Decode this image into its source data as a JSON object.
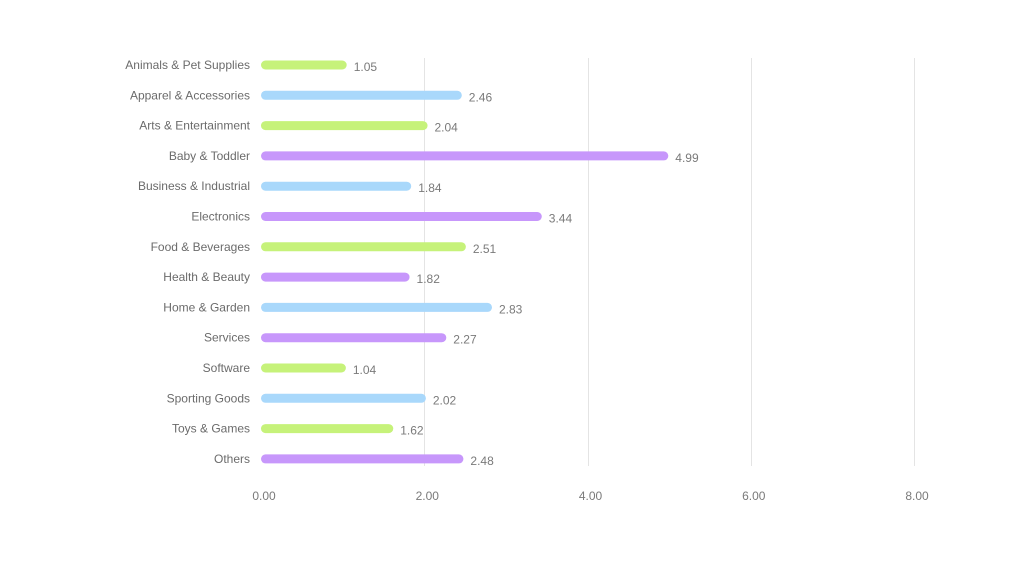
{
  "chart_data": {
    "type": "bar",
    "orientation": "horizontal",
    "categories": [
      "Animals & Pet Supplies",
      "Apparel & Accessories",
      "Arts & Entertainment",
      "Baby & Toddler",
      "Business & Industrial",
      "Electronics",
      "Food & Beverages",
      "Health & Beauty",
      "Home & Garden",
      "Services",
      "Software",
      "Sporting Goods",
      "Toys & Games",
      "Others"
    ],
    "values": [
      1.05,
      2.46,
      2.04,
      4.99,
      1.84,
      3.44,
      2.51,
      1.82,
      2.83,
      2.27,
      1.04,
      2.02,
      1.62,
      2.48
    ],
    "value_labels": [
      "1.05",
      "2.46",
      "2.04",
      "4.99",
      "1.84",
      "3.44",
      "2.51",
      "1.82",
      "2.83",
      "2.27",
      "1.04",
      "2.02",
      "1.62",
      "2.48"
    ],
    "bar_colors": [
      "#c6f27a",
      "#a9d8fb",
      "#c6f27a",
      "#c797fb",
      "#a9d8fb",
      "#c797fb",
      "#c6f27a",
      "#c797fb",
      "#a9d8fb",
      "#c797fb",
      "#c6f27a",
      "#a9d8fb",
      "#c6f27a",
      "#c797fb"
    ],
    "x_ticks": [
      0,
      2,
      4,
      6,
      8
    ],
    "x_tick_labels": [
      "0.00",
      "2.00",
      "4.00",
      "6.00",
      "8.00"
    ],
    "xlim": [
      0,
      8
    ],
    "title": "",
    "xlabel": "",
    "ylabel": "",
    "grid": "vertical",
    "legend": "none"
  }
}
